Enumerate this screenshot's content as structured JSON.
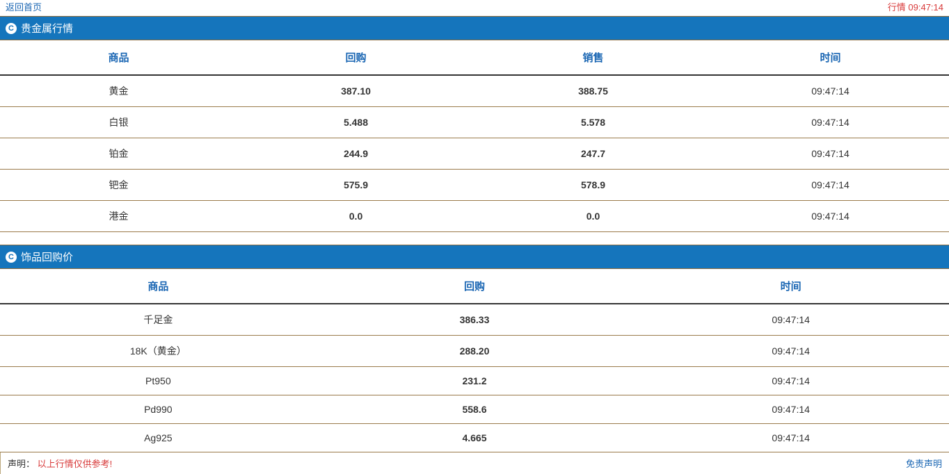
{
  "topbar": {
    "back_link": "返回首页",
    "right_status": "行情 09:47:14"
  },
  "section1": {
    "title": "贵金属行情",
    "columns": [
      "商品",
      "回购",
      "销售",
      "时间"
    ],
    "rows": [
      {
        "name": "黄金",
        "buy": "387.10",
        "sell": "388.75",
        "time": "09:47:14"
      },
      {
        "name": "白银",
        "buy": "5.488",
        "sell": "5.578",
        "time": "09:47:14"
      },
      {
        "name": "铂金",
        "buy": "244.9",
        "sell": "247.7",
        "time": "09:47:14"
      },
      {
        "name": "钯金",
        "buy": "575.9",
        "sell": "578.9",
        "time": "09:47:14"
      },
      {
        "name": "港金",
        "buy": "0.0",
        "sell": "0.0",
        "time": "09:47:14"
      }
    ]
  },
  "section2": {
    "title": "饰品回购价",
    "columns": [
      "商品",
      "回购",
      "时间"
    ],
    "rows": [
      {
        "name": "千足金",
        "buy": "386.33",
        "time": "09:47:14"
      },
      {
        "name": "18K（黄金）",
        "buy": "288.20",
        "time": "09:47:14"
      },
      {
        "name": "Pt950",
        "buy": "231.2",
        "time": "09:47:14"
      },
      {
        "name": "Pd990",
        "buy": "558.6",
        "time": "09:47:14"
      },
      {
        "name": "Ag925",
        "buy": "4.665",
        "time": "09:47:14"
      }
    ]
  },
  "footer": {
    "label": "声明：",
    "text": "以上行情仅供参考!",
    "right_link": "免责声明"
  },
  "colors": {
    "header_bg": "#1575bc",
    "header_text": "#ffffff",
    "link": "#1a66b3",
    "red": "#d83a3a",
    "row_border": "#9a7a4a",
    "thead_border": "#333333"
  }
}
